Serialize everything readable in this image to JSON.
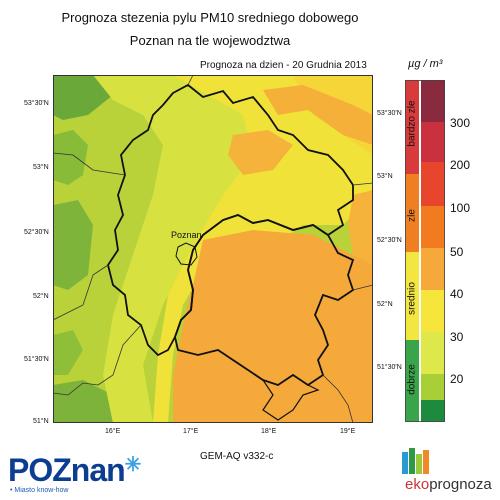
{
  "title_line1": "Prognoza stezenia pylu PM10 sredniego dobowego",
  "title_line2": "Poznan na tle wojewodztwa",
  "forecast_date": "Prognoza na dzien -  20 Grudnia 2013",
  "model": "GEM-AQ v332-c",
  "city_label": "Poznan",
  "lat_left": [
    "53°30'N",
    "53°N",
    "52°30'N",
    "52°N",
    "51°30'N",
    "51°N"
  ],
  "lat_right": [
    "53°30'N",
    "53°N",
    "52°30'N",
    "52°N",
    "51°30'N"
  ],
  "lon_labels": [
    "16°E",
    "17°E",
    "18°E",
    "19°E"
  ],
  "legend": {
    "unit": "µg / m³",
    "ticks": [
      "300",
      "200",
      "100",
      "50",
      "40",
      "30",
      "20"
    ],
    "categories": [
      "bardzo zle",
      "zle",
      "srednio",
      "dobrze"
    ],
    "colors": [
      "#8a2a3f",
      "#c8313d",
      "#e8452d",
      "#f27b1f",
      "#f6a93a",
      "#f6e63c",
      "#dfe84a",
      "#a9cf38",
      "#4aa84a",
      "#1e8a3e"
    ],
    "category_colors": [
      "#d83b3b",
      "#f07f22",
      "#f3e640",
      "#3aa44a"
    ]
  },
  "logos": {
    "poznan": "POZnan",
    "poznan_tagline": "• Miasto know-how",
    "eko_part1": "eko",
    "eko_part2": "prognoza"
  }
}
